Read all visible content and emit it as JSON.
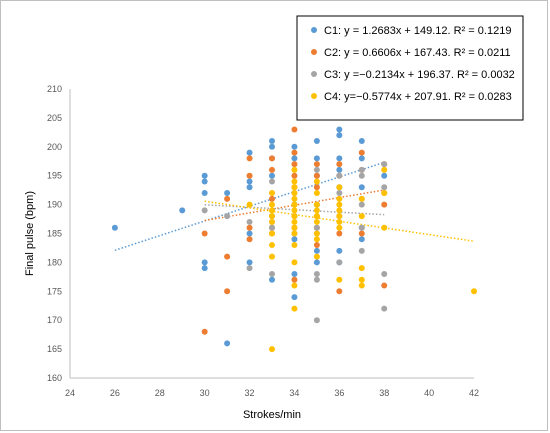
{
  "chart_data": {
    "type": "scatter",
    "xlabel": "Strokes/min",
    "ylabel": "Final pulse (bpm)",
    "xlim": [
      24,
      42
    ],
    "ylim": [
      160,
      210
    ],
    "x_ticks": [
      "24",
      "26",
      "28",
      "30",
      "32",
      "34",
      "36",
      "38",
      "40",
      "42"
    ],
    "y_ticks": [
      "160",
      "165",
      "170",
      "175",
      "180",
      "185",
      "190",
      "195",
      "200",
      "205",
      "210"
    ],
    "grid": false,
    "legend_position": "top-right",
    "series": [
      {
        "name": "C1",
        "color": "#5b9bd5",
        "legend_label": "C1: y = 1.2683x + 149.12. R² = 0.1219",
        "trend": {
          "slope": 1.2683,
          "intercept": 149.12,
          "x_range": [
            26,
            38
          ]
        },
        "points": [
          [
            26,
            186
          ],
          [
            29,
            189
          ],
          [
            30,
            195
          ],
          [
            30,
            194
          ],
          [
            30,
            192
          ],
          [
            30,
            180
          ],
          [
            30,
            179
          ],
          [
            31,
            192
          ],
          [
            31,
            166
          ],
          [
            32,
            199
          ],
          [
            32,
            194
          ],
          [
            32,
            193
          ],
          [
            32,
            185
          ],
          [
            32,
            180
          ],
          [
            33,
            201
          ],
          [
            33,
            200
          ],
          [
            33,
            198
          ],
          [
            33,
            195
          ],
          [
            33,
            188
          ],
          [
            33,
            177
          ],
          [
            34,
            200
          ],
          [
            34,
            198
          ],
          [
            34,
            190
          ],
          [
            34,
            184
          ],
          [
            34,
            178
          ],
          [
            34,
            174
          ],
          [
            35,
            201
          ],
          [
            35,
            198
          ],
          [
            35,
            195
          ],
          [
            35,
            190
          ],
          [
            35,
            185
          ],
          [
            35,
            182
          ],
          [
            35,
            180
          ],
          [
            36,
            203
          ],
          [
            36,
            202
          ],
          [
            36,
            198
          ],
          [
            36,
            196
          ],
          [
            36,
            193
          ],
          [
            36,
            182
          ],
          [
            36,
            180
          ],
          [
            37,
            201
          ],
          [
            37,
            198
          ],
          [
            37,
            193
          ],
          [
            37,
            186
          ],
          [
            37,
            184
          ],
          [
            38,
            195
          ]
        ]
      },
      {
        "name": "C2",
        "color": "#ed7d31",
        "legend_label": "C2: y = 0.6606x + 167.43. R² = 0.0211",
        "trend": {
          "slope": 0.6606,
          "intercept": 167.43,
          "x_range": [
            30,
            38
          ]
        },
        "points": [
          [
            30,
            185
          ],
          [
            30,
            168
          ],
          [
            31,
            191
          ],
          [
            31,
            181
          ],
          [
            31,
            175
          ],
          [
            32,
            198
          ],
          [
            32,
            195
          ],
          [
            32,
            186
          ],
          [
            32,
            184
          ],
          [
            33,
            198
          ],
          [
            33,
            196
          ],
          [
            33,
            191
          ],
          [
            33,
            186
          ],
          [
            33,
            185
          ],
          [
            34,
            203
          ],
          [
            34,
            199
          ],
          [
            34,
            197
          ],
          [
            34,
            195
          ],
          [
            34,
            193
          ],
          [
            34,
            188
          ],
          [
            34,
            186
          ],
          [
            34,
            177
          ],
          [
            35,
            197
          ],
          [
            35,
            195
          ],
          [
            35,
            193
          ],
          [
            35,
            188
          ],
          [
            35,
            186
          ],
          [
            35,
            183
          ],
          [
            36,
            197
          ],
          [
            36,
            195
          ],
          [
            36,
            185
          ],
          [
            36,
            175
          ],
          [
            37,
            199
          ],
          [
            37,
            196
          ],
          [
            37,
            185
          ],
          [
            38,
            197
          ],
          [
            38,
            192
          ],
          [
            38,
            190
          ],
          [
            38,
            176
          ]
        ]
      },
      {
        "name": "C3",
        "color": "#a5a5a5",
        "legend_label": "C3: y =−0.2134x + 196.37. R² = 0.0032",
        "trend": {
          "slope": -0.2134,
          "intercept": 196.37,
          "x_range": [
            30,
            38
          ]
        },
        "points": [
          [
            30,
            189
          ],
          [
            31,
            188
          ],
          [
            32,
            187
          ],
          [
            32,
            179
          ],
          [
            33,
            194
          ],
          [
            33,
            187
          ],
          [
            33,
            186
          ],
          [
            33,
            178
          ],
          [
            34,
            192
          ],
          [
            34,
            190
          ],
          [
            34,
            188
          ],
          [
            34,
            185
          ],
          [
            35,
            196
          ],
          [
            35,
            190
          ],
          [
            35,
            186
          ],
          [
            35,
            178
          ],
          [
            35,
            177
          ],
          [
            35,
            170
          ],
          [
            36,
            195
          ],
          [
            36,
            192
          ],
          [
            36,
            188
          ],
          [
            36,
            180
          ],
          [
            37,
            196
          ],
          [
            37,
            195
          ],
          [
            37,
            191
          ],
          [
            37,
            190
          ],
          [
            37,
            186
          ],
          [
            37,
            182
          ],
          [
            38,
            197
          ],
          [
            38,
            193
          ],
          [
            38,
            178
          ],
          [
            38,
            172
          ]
        ]
      },
      {
        "name": "C4",
        "color": "#ffc000",
        "legend_label": "C4: y=−0.5774x + 207.91. R² = 0.0283",
        "trend": {
          "slope": -0.5774,
          "intercept": 207.91,
          "x_range": [
            30,
            42
          ]
        },
        "points": [
          [
            32,
            190
          ],
          [
            33,
            192
          ],
          [
            33,
            190
          ],
          [
            33,
            189
          ],
          [
            33,
            188
          ],
          [
            33,
            187
          ],
          [
            33,
            185
          ],
          [
            33,
            183
          ],
          [
            33,
            181
          ],
          [
            33,
            165
          ],
          [
            34,
            196
          ],
          [
            34,
            194
          ],
          [
            34,
            193
          ],
          [
            34,
            192
          ],
          [
            34,
            191
          ],
          [
            34,
            190
          ],
          [
            34,
            189
          ],
          [
            34,
            188
          ],
          [
            34,
            187
          ],
          [
            34,
            186
          ],
          [
            34,
            185
          ],
          [
            34,
            183
          ],
          [
            34,
            180
          ],
          [
            34,
            176
          ],
          [
            34,
            172
          ],
          [
            35,
            194
          ],
          [
            35,
            192
          ],
          [
            35,
            190
          ],
          [
            35,
            189
          ],
          [
            35,
            188
          ],
          [
            35,
            187
          ],
          [
            35,
            185
          ],
          [
            35,
            184
          ],
          [
            35,
            181
          ],
          [
            36,
            193
          ],
          [
            36,
            191
          ],
          [
            36,
            190
          ],
          [
            36,
            189
          ],
          [
            36,
            188
          ],
          [
            36,
            187
          ],
          [
            36,
            186
          ],
          [
            36,
            177
          ],
          [
            37,
            191
          ],
          [
            37,
            188
          ],
          [
            37,
            179
          ],
          [
            37,
            177
          ],
          [
            37,
            176
          ],
          [
            38,
            196
          ],
          [
            38,
            192
          ],
          [
            38,
            186
          ],
          [
            42,
            175
          ]
        ]
      }
    ]
  }
}
